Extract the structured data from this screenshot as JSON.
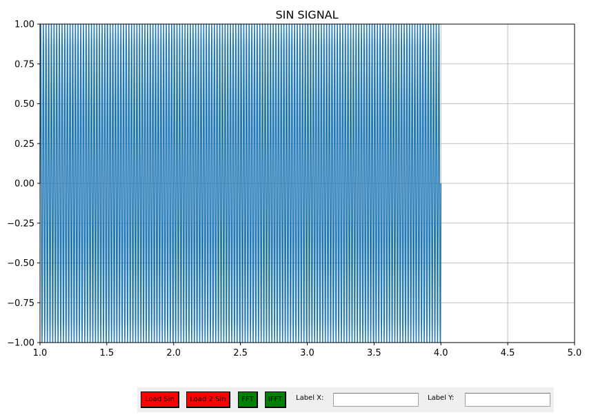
{
  "chart_data": {
    "type": "line",
    "title": "SIN SIGNAL",
    "xlabel": "",
    "ylabel": "",
    "xlim": [
      1.0,
      5.0
    ],
    "ylim": [
      -1.0,
      1.0
    ],
    "xticks": [
      "1.0",
      "1.5",
      "2.0",
      "2.5",
      "3.0",
      "3.5",
      "4.0",
      "4.5",
      "5.0"
    ],
    "yticks": [
      "1.00",
      "0.75",
      "0.50",
      "0.25",
      "0.00",
      "−0.25",
      "−0.50",
      "−0.75",
      "−1.00"
    ],
    "grid": true,
    "line_color": "#1f77b4",
    "series": [
      {
        "function": "sin",
        "x_start": 1.0,
        "x_end": 4.0,
        "amplitude": 1.0,
        "cycles_per_unit": 50
      }
    ]
  },
  "toolbar": {
    "load_sin_label": "Load Sin",
    "load_2sin_label": "Load 2 Sin",
    "fft_label": "FFT",
    "ifft_label": "IFFT",
    "label_x_text": "Label X:",
    "label_y_text": "Label Y:",
    "label_x_value": "",
    "label_y_value": "",
    "load_color": "#ff0000",
    "fft_color": "#008000"
  }
}
